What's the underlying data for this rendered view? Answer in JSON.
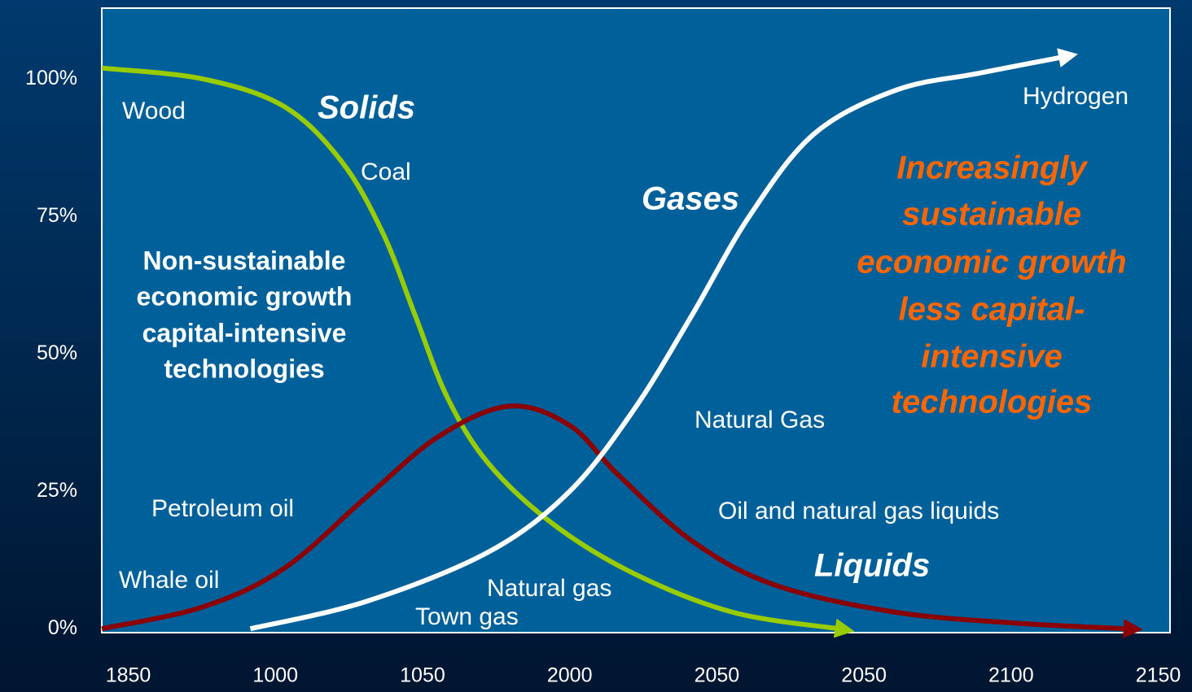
{
  "chart_data": {
    "type": "line",
    "categories": [
      "1850",
      "1000",
      "1050",
      "2000",
      "2050",
      "2050",
      "2100",
      "2150"
    ],
    "xlim": [
      -0.18,
      7.08
    ],
    "ylim": [
      -0.7,
      112.9
    ],
    "yticks": [
      {
        "value": 0,
        "label": "0%"
      },
      {
        "value": 25,
        "label": "25%"
      },
      {
        "value": 50,
        "label": "50%"
      },
      {
        "value": 75,
        "label": "75%"
      },
      {
        "value": 100,
        "label": "100%"
      }
    ],
    "series": [
      {
        "name": "Solids",
        "color": "#99cc00",
        "x": [
          -0.18,
          0.51,
          1.06,
          1.45,
          1.73,
          1.95,
          2.17,
          2.45,
          2.89,
          3.44,
          4.11,
          4.83
        ],
        "values": [
          102,
          100,
          95,
          85,
          72,
          57,
          42,
          30,
          19,
          10,
          3,
          0
        ]
      },
      {
        "name": "Liquids",
        "color": "#8b0000",
        "x": [
          -0.18,
          0.51,
          1.06,
          1.62,
          2.11,
          2.59,
          3.0,
          3.33,
          3.83,
          4.39,
          5.22,
          6.05,
          6.79
        ],
        "values": [
          0,
          4,
          11,
          24,
          35,
          40.5,
          37,
          28,
          16,
          8,
          3,
          1,
          0
        ]
      },
      {
        "name": "Gases",
        "color": "#ffffff",
        "x": [
          0.83,
          1.62,
          2.45,
          3.0,
          3.44,
          3.83,
          4.22,
          4.66,
          5.22,
          5.77,
          6.35
        ],
        "values": [
          0,
          5,
          14,
          25,
          40,
          57,
          75,
          90,
          98,
          101,
          104
        ]
      }
    ],
    "annotations": {
      "wood": "Wood",
      "coal": "Coal",
      "petroleum": "Petroleum oil",
      "whale": "Whale oil",
      "natural_gas_low": "Natural gas",
      "town_gas": "Town gas",
      "natural_gas_high": "Natural Gas",
      "oil_liquids": "Oil and natural gas liquids",
      "hydrogen": "Hydrogen",
      "non_sustainable": [
        "Non-sustainable",
        "economic growth",
        "capital-intensive",
        "technologies"
      ],
      "sustainable": [
        "Increasingly",
        "sustainable",
        "economic growth",
        "less capital-",
        "intensive",
        "technologies"
      ]
    }
  }
}
